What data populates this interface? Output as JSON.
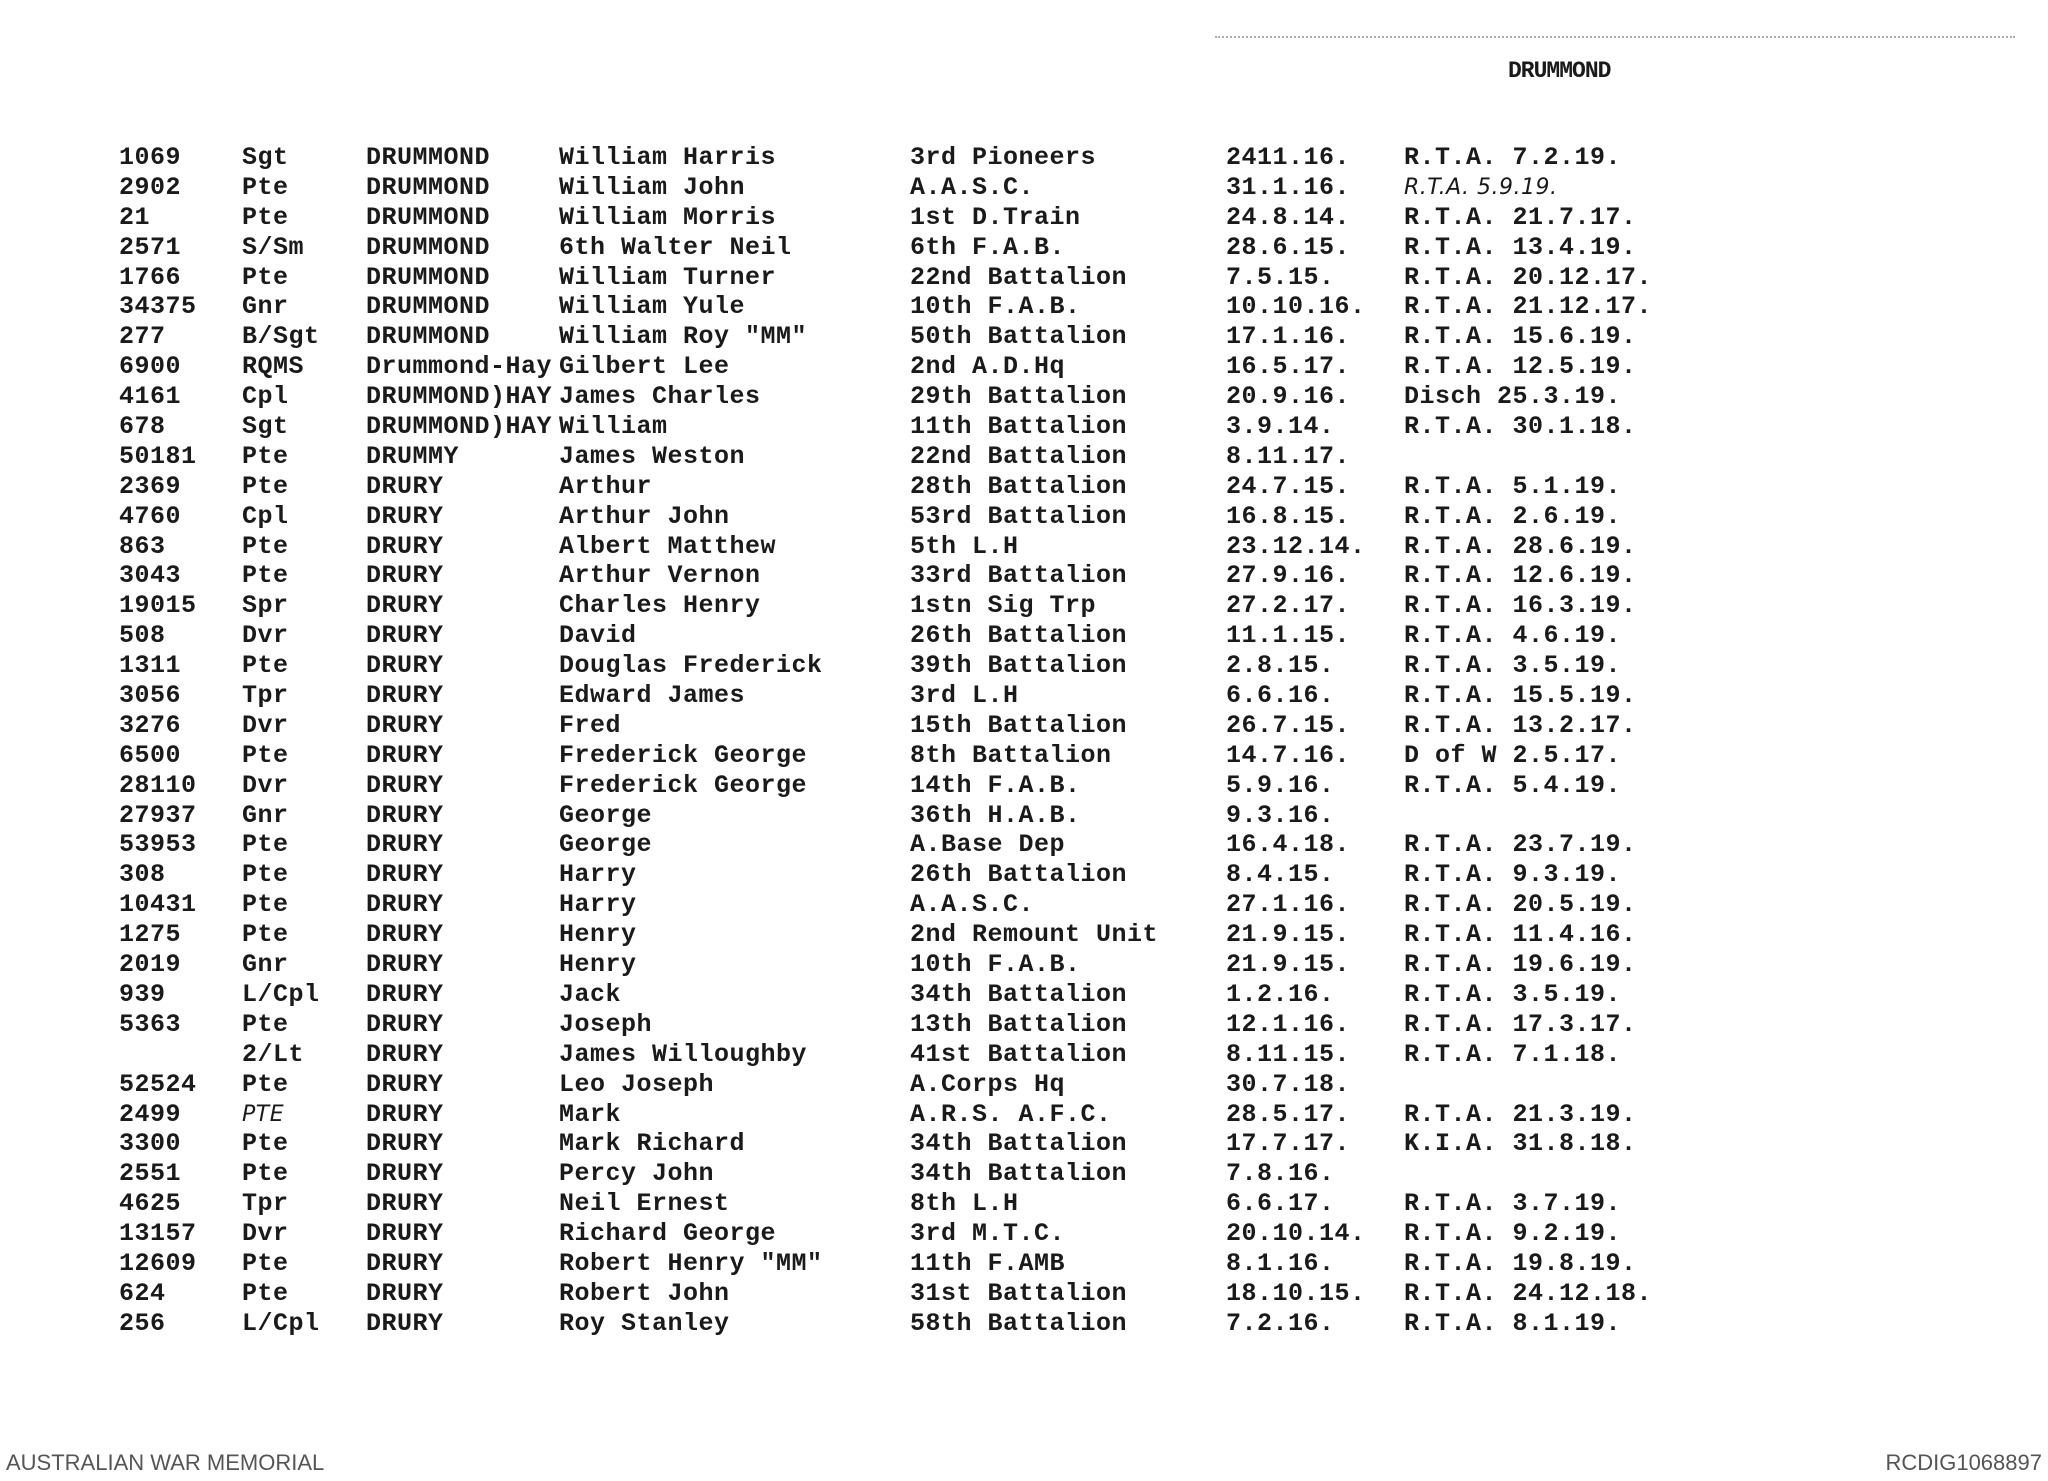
{
  "header": "DRUMMOND",
  "rows": [
    [
      "1069",
      "Sgt",
      "DRUMMOND",
      "William Harris",
      "3rd Pioneers",
      "2411.16.",
      "R.T.A. 7.2.19."
    ],
    [
      "2902",
      "Pte",
      "DRUMMOND",
      "William John",
      "A.A.S.C.",
      "31.1.16.",
      "R.T.A. 5.9.19."
    ],
    [
      "21",
      "Pte",
      "DRUMMOND",
      "William Morris",
      "1st D.Train",
      "24.8.14.",
      "R.T.A. 21.7.17."
    ],
    [
      "2571",
      "S/Sm",
      "DRUMMOND",
      "6th Walter Neil",
      "6th F.A.B.",
      "28.6.15.",
      "R.T.A. 13.4.19."
    ],
    [
      "1766",
      "Pte",
      "DRUMMOND",
      "William Turner",
      "22nd Battalion",
      "7.5.15.",
      "R.T.A. 20.12.17."
    ],
    [
      "34375",
      "Gnr",
      "DRUMMOND",
      "William Yule",
      "10th F.A.B.",
      "10.10.16.",
      "R.T.A. 21.12.17."
    ],
    [
      "277",
      "B/Sgt",
      "DRUMMOND",
      "William Roy \"MM\"",
      "50th Battalion",
      "17.1.16.",
      "R.T.A. 15.6.19."
    ],
    [
      "6900",
      "RQMS",
      "Drummond-Hay",
      "Gilbert Lee",
      "2nd A.D.Hq",
      "16.5.17.",
      "R.T.A. 12.5.19."
    ],
    [
      "4161",
      "Cpl",
      "DRUMMOND)HAY",
      "James Charles",
      "29th Battalion",
      "20.9.16.",
      "Disch 25.3.19."
    ],
    [
      "678",
      "Sgt",
      "DRUMMOND)HAY",
      "William",
      "11th Battalion",
      "3.9.14.",
      "R.T.A. 30.1.18."
    ],
    [
      "50181",
      "Pte",
      "DRUMMY",
      "James Weston",
      "22nd Battalion",
      "8.11.17.",
      ""
    ],
    [
      "2369",
      "Pte",
      "DRURY",
      "Arthur",
      "28th Battalion",
      "24.7.15.",
      "R.T.A. 5.1.19."
    ],
    [
      "4760",
      "Cpl",
      "DRURY",
      "Arthur John",
      "53rd Battalion",
      "16.8.15.",
      "R.T.A. 2.6.19."
    ],
    [
      "863",
      "Pte",
      "DRURY",
      "Albert Matthew",
      "5th L.H",
      "23.12.14.",
      "R.T.A. 28.6.19."
    ],
    [
      "3043",
      "Pte",
      "DRURY",
      "Arthur Vernon",
      "33rd Battalion",
      "27.9.16.",
      "R.T.A. 12.6.19."
    ],
    [
      "19015",
      "Spr",
      "DRURY",
      "Charles Henry",
      "1stn Sig Trp",
      "27.2.17.",
      "R.T.A. 16.3.19."
    ],
    [
      "508",
      "Dvr",
      "DRURY",
      "David",
      "26th Battalion",
      "11.1.15.",
      "R.T.A. 4.6.19."
    ],
    [
      "1311",
      "Pte",
      "DRURY",
      "Douglas Frederick",
      "39th Battalion",
      "2.8.15.",
      "R.T.A. 3.5.19."
    ],
    [
      "3056",
      "Tpr",
      "DRURY",
      "Edward James",
      "3rd L.H",
      "6.6.16.",
      "R.T.A. 15.5.19."
    ],
    [
      "3276",
      "Dvr",
      "DRURY",
      "Fred",
      "15th Battalion",
      "26.7.15.",
      "R.T.A. 13.2.17."
    ],
    [
      "6500",
      "Pte",
      "DRURY",
      "Frederick George",
      "8th Battalion",
      "14.7.16.",
      "D of W 2.5.17."
    ],
    [
      "28110",
      "Dvr",
      "DRURY",
      "Frederick George",
      "14th F.A.B.",
      "5.9.16.",
      "R.T.A. 5.4.19."
    ],
    [
      "27937",
      "Gnr",
      "DRURY",
      "George",
      "36th H.A.B.",
      "9.3.16.",
      ""
    ],
    [
      "53953",
      "Pte",
      "DRURY",
      "George",
      "A.Base Dep",
      "16.4.18.",
      "R.T.A. 23.7.19."
    ],
    [
      "308",
      "Pte",
      "DRURY",
      "Harry",
      "26th Battalion",
      "8.4.15.",
      "R.T.A. 9.3.19."
    ],
    [
      "10431",
      "Pte",
      "DRURY",
      "Harry",
      "A.A.S.C.",
      "27.1.16.",
      "R.T.A. 20.5.19."
    ],
    [
      "1275",
      "Pte",
      "DRURY",
      "Henry",
      "2nd Remount Unit",
      "21.9.15.",
      "R.T.A. 11.4.16."
    ],
    [
      "2019",
      "Gnr",
      "DRURY",
      "Henry",
      "10th F.A.B.",
      "21.9.15.",
      "R.T.A. 19.6.19."
    ],
    [
      "939",
      "L/Cpl",
      "DRURY",
      "Jack",
      "34th Battalion",
      "1.2.16.",
      "R.T.A. 3.5.19."
    ],
    [
      "5363",
      "Pte",
      "DRURY",
      "Joseph",
      "13th Battalion",
      "12.1.16.",
      "R.T.A. 17.3.17."
    ],
    [
      "",
      "2/Lt",
      "DRURY",
      "James Willoughby",
      "41st Battalion",
      "8.11.15.",
      "R.T.A. 7.1.18."
    ],
    [
      "52524",
      "Pte",
      "DRURY",
      "Leo Joseph",
      "A.Corps Hq",
      "30.7.18.",
      ""
    ],
    [
      "2499",
      "PTE",
      "DRURY",
      "Mark",
      "A.R.S. A.F.C.",
      "28.5.17.",
      "R.T.A. 21.3.19."
    ],
    [
      "3300",
      "Pte",
      "DRURY",
      "Mark Richard",
      "34th Battalion",
      "17.7.17.",
      "K.I.A. 31.8.18."
    ],
    [
      "2551",
      "Pte",
      "DRURY",
      "Percy John",
      "34th Battalion",
      "7.8.16.",
      ""
    ],
    [
      "4625",
      "Tpr",
      "DRURY",
      "Neil Ernest",
      "8th L.H",
      "6.6.17.",
      "R.T.A. 3.7.19."
    ],
    [
      "13157",
      "Dvr",
      "DRURY",
      "Richard George",
      "3rd M.T.C.",
      "20.10.14.",
      "R.T.A. 9.2.19."
    ],
    [
      "12609",
      "Pte",
      "DRURY",
      "Robert Henry \"MM\"",
      "11th F.AMB",
      "8.1.16.",
      "R.T.A. 19.8.19."
    ],
    [
      "624",
      "Pte",
      "DRURY",
      "Robert John",
      "31st Battalion",
      "18.10.15.",
      "R.T.A. 24.12.18."
    ],
    [
      "256",
      "L/Cpl",
      "DRURY",
      "Roy Stanley",
      "58th Battalion",
      "7.2.16.",
      "R.T.A. 8.1.19."
    ]
  ],
  "handwritten_rows": [
    1,
    32
  ],
  "footer": {
    "left": "AUSTRALIAN WAR MEMORIAL",
    "right": "RCDIG1068897"
  }
}
